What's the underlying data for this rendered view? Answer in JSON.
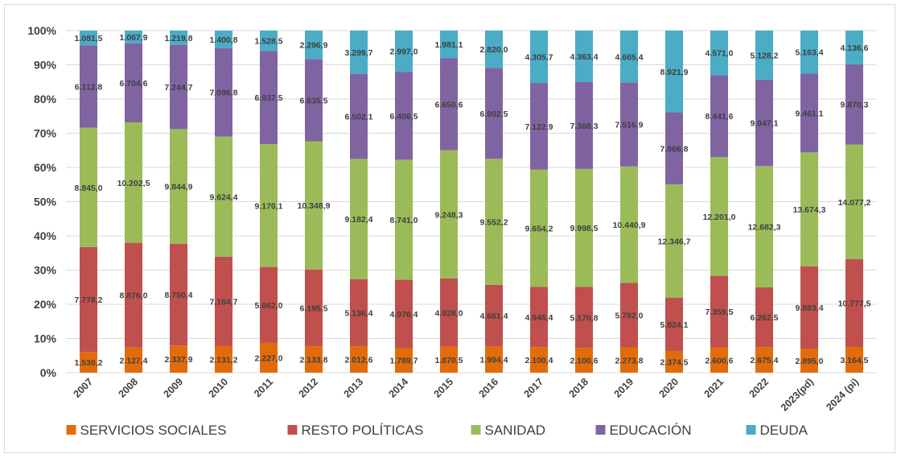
{
  "chart_data": {
    "type": "bar",
    "stacked": "percent",
    "categories": [
      "2007",
      "2008",
      "2009",
      "2010",
      "2011",
      "2012",
      "2013",
      "2014",
      "2015",
      "2016",
      "2017",
      "2018",
      "2019",
      "2020",
      "2021",
      "2022",
      "2023(pd)",
      "2024 (pi)"
    ],
    "series": [
      {
        "name": "SERVICIOS SOCIALES",
        "color": "#e36c0a",
        "values": [
          1530.2,
          2127.4,
          2337.9,
          2131.2,
          2227.0,
          2133.8,
          2012.6,
          1789.7,
          1870.5,
          1994.4,
          2100.4,
          2100.6,
          2273.8,
          2374.5,
          2600.6,
          2675.4,
          2895.0,
          3164.5
        ],
        "labels": [
          "1.530,2",
          "2.127,4",
          "2.337,9",
          "2.131,2",
          "2.227,0",
          "2.133,8",
          "2.012,6",
          "1.789,7",
          "1.870,5",
          "1.994,4",
          "2.100,4",
          "2.100,6",
          "2.273,8",
          "2.374,5",
          "2.600,6",
          "2.675,4",
          "2.895,0",
          "3.164,5"
        ]
      },
      {
        "name": "RESTO POLÍTICAS",
        "color": "#c0504d",
        "values": [
          7778.2,
          8876.0,
          8750.4,
          7164.7,
          5662.0,
          6195.5,
          5136.4,
          4976.4,
          4928.0,
          4661.4,
          4946.4,
          5170.8,
          5782.0,
          5824.1,
          7359.5,
          6262.5,
          9883.4,
          10777.5
        ],
        "labels": [
          "7.778,2",
          "8.876,0",
          "8.750,4",
          "7.164,7",
          "5.662,0",
          "6.195,5",
          "5.136,4",
          "4.976,4",
          "4.928,0",
          "4.661,4",
          "4.946,4",
          "5.170,8",
          "5.782,0",
          "5.824,1",
          "7.359,5",
          "6.262,5",
          "9.883,4",
          "10.777,5"
        ]
      },
      {
        "name": "SANIDAD",
        "color": "#9bbb59",
        "values": [
          8845.0,
          10202.5,
          9844.9,
          9624.4,
          9170.1,
          10348.9,
          9182.4,
          8741.0,
          9248.3,
          9552.2,
          9654.2,
          9998.5,
          10440.9,
          12346.7,
          12201.0,
          12682.3,
          13674.3,
          14077.2
        ],
        "labels": [
          "8.845,0",
          "10.202,5",
          "9.844,9",
          "9.624,4",
          "9.170,1",
          "10.348,9",
          "9.182,4",
          "8.741,0",
          "9.248,3",
          "9.552,2",
          "9.654,2",
          "9.998,5",
          "10.440,9",
          "12.346,7",
          "12.201,0",
          "12.682,3",
          "13.674,3",
          "14.077,2"
        ]
      },
      {
        "name": "EDUCACIÓN",
        "color": "#8064a2",
        "values": [
          6112.8,
          6704.6,
          7244.7,
          7096.8,
          6937.5,
          6635.5,
          6502.1,
          6406.5,
          6650.6,
          6902.5,
          7122.9,
          7368.3,
          7516.9,
          7866.8,
          8441.6,
          9047.1,
          9461.1,
          9870.3
        ],
        "labels": [
          "6.112,8",
          "6.704,6",
          "7.244,7",
          "7.096,8",
          "6.937,5",
          "6.635,5",
          "6.502,1",
          "6.406,5",
          "6.650,6",
          "6.902,5",
          "7.122,9",
          "7.368,3",
          "7.516,9",
          "7.866,8",
          "8.441,6",
          "9.047,1",
          "9.461,1",
          "9.870,3"
        ]
      },
      {
        "name": "DEUDA",
        "color": "#4bacc6",
        "values": [
          1081.5,
          1067.9,
          1219.8,
          1400.8,
          1528.5,
          2296.9,
          3299.7,
          2997.0,
          1981.1,
          2820.0,
          4305.7,
          4363.4,
          4665.4,
          8921.9,
          4571.0,
          5128.2,
          5163.4,
          4136.6
        ],
        "labels": [
          "1.081,5",
          "1.067,9",
          "1.219,8",
          "1.400,8",
          "1.528,5",
          "2.296,9",
          "3.299,7",
          "2.997,0",
          "1.981,1",
          "2.820,0",
          "4.305,7",
          "4.363,4",
          "4.665,4",
          "8.921,9",
          "4.571,0",
          "5.128,2",
          "5.163,4",
          "4.136,6"
        ]
      }
    ],
    "yticks": [
      "0%",
      "10%",
      "20%",
      "30%",
      "40%",
      "50%",
      "60%",
      "70%",
      "80%",
      "90%",
      "100%"
    ],
    "ylim": [
      0,
      100
    ],
    "grid": true,
    "legend_position": "bottom"
  }
}
